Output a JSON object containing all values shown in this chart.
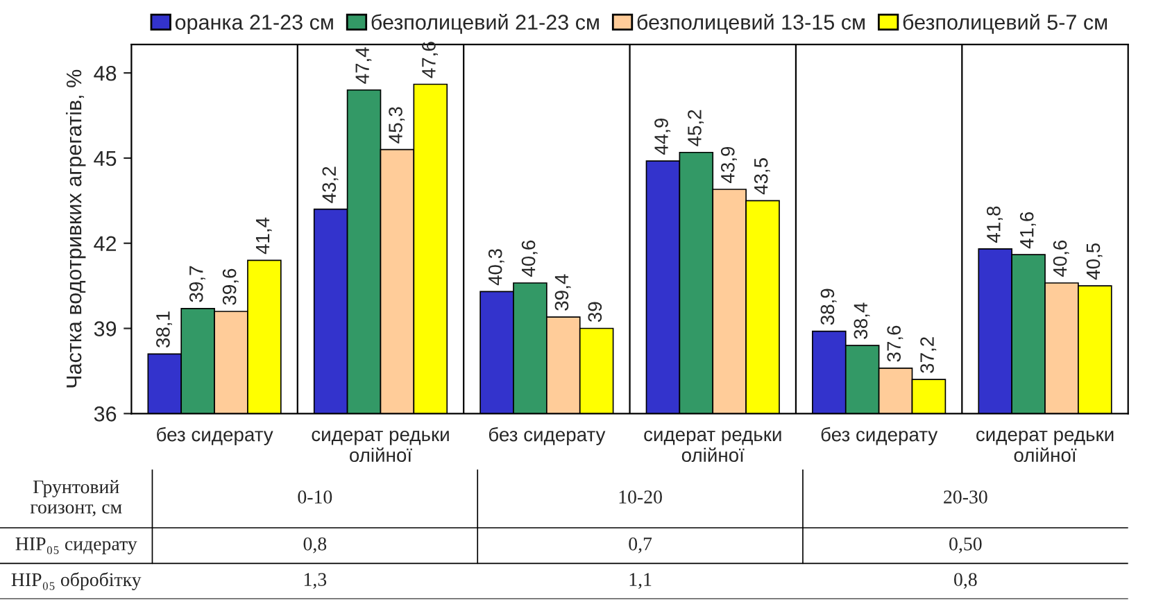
{
  "chart_data": {
    "type": "bar",
    "ylabel": "Частка водотривких агрегатів, %",
    "categories": [
      "без сидерату",
      "сидерат редьки\nолійної",
      "без сидерату",
      "сидерат редьки\nолійної",
      "без сидерату",
      "сидерат редьки\nолійної"
    ],
    "series": [
      {
        "name": "оранка 21-23 см",
        "color": "#3333cc",
        "values": [
          38.1,
          43.2,
          40.3,
          44.9,
          38.9,
          41.8
        ]
      },
      {
        "name": "безполицевий 21-23 см",
        "color": "#339966",
        "values": [
          39.7,
          47.4,
          40.6,
          45.2,
          38.4,
          41.6
        ]
      },
      {
        "name": "безполицевий 13-15 см",
        "color": "#ffcc99",
        "values": [
          39.6,
          45.3,
          39.4,
          43.9,
          37.6,
          40.6
        ]
      },
      {
        "name": "безполицевий 5-7 см",
        "color": "#ffff00",
        "values": [
          41.4,
          47.6,
          39,
          43.5,
          37.2,
          40.5
        ]
      }
    ],
    "value_labels": [
      [
        "38,1",
        "43,2",
        "40,3",
        "44,9",
        "38,9",
        "41,8"
      ],
      [
        "39,7",
        "47,4",
        "40,6",
        "45,2",
        "38,4",
        "41,6"
      ],
      [
        "39,6",
        "45,3",
        "39,4",
        "43,9",
        "37,6",
        "40,6"
      ],
      [
        "41,4",
        "47,6",
        "39",
        "43,5",
        "37,2",
        "40,5"
      ]
    ],
    "ylim": [
      36,
      49
    ],
    "yticks": [
      36,
      39,
      42,
      45,
      48
    ],
    "grid": false,
    "legend": "top",
    "annotations": [
      "Грунтовий\nгоизонт, см",
      "0-10",
      "10-20",
      "20-30",
      "НІР₀₅ сидерату",
      "0,8",
      "0,7",
      "0,50",
      "НІР₀₅ обробітку",
      "1,3",
      "1,1",
      "0,8"
    ]
  }
}
